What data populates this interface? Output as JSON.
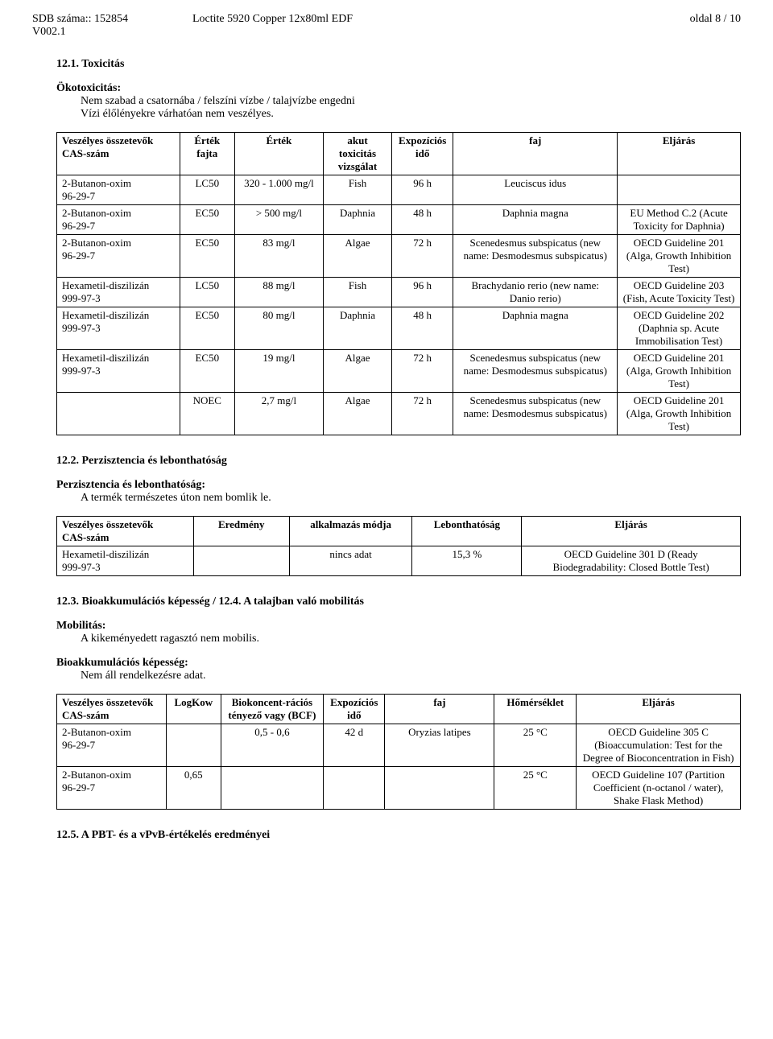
{
  "header": {
    "sdb_label": "SDB száma:: 152854",
    "version_label": "V002.1",
    "product_name": "Loctite 5920 Copper 12x80ml EDF",
    "page_label": "oldal 8 / 10"
  },
  "sec12_1": {
    "title": "12.1. Toxicitás",
    "eco_head": "Ökotoxicitás:",
    "eco_line1": "Nem szabad a csatornába / felszíni vízbe / talajvízbe engedni",
    "eco_line2": "Vízi élőlényekre várhatóan nem veszélyes.",
    "table": {
      "headers": [
        "Veszélyes összetevők\nCAS-szám",
        "Érték fajta",
        "Érték",
        "akut toxicitás vizsgálat",
        "Expozíciós idő",
        "faj",
        "Eljárás"
      ],
      "rows": [
        [
          "2-Butanon-oxim\n96-29-7",
          "LC50",
          "320 - 1.000 mg/l",
          "Fish",
          "96 h",
          "Leuciscus idus",
          ""
        ],
        [
          "2-Butanon-oxim\n96-29-7",
          "EC50",
          "> 500 mg/l",
          "Daphnia",
          "48 h",
          "Daphnia magna",
          "EU Method C.2 (Acute Toxicity for Daphnia)"
        ],
        [
          "2-Butanon-oxim\n96-29-7",
          "EC50",
          "83 mg/l",
          "Algae",
          "72 h",
          "Scenedesmus subspicatus (new name: Desmodesmus subspicatus)",
          "OECD Guideline 201 (Alga, Growth Inhibition Test)"
        ],
        [
          "Hexametil-diszilizán\n999-97-3",
          "LC50",
          "88 mg/l",
          "Fish",
          "96 h",
          "Brachydanio rerio (new name: Danio rerio)",
          "OECD Guideline 203 (Fish, Acute Toxicity Test)"
        ],
        [
          "Hexametil-diszilizán\n999-97-3",
          "EC50",
          "80 mg/l",
          "Daphnia",
          "48 h",
          "Daphnia magna",
          "OECD Guideline 202 (Daphnia sp. Acute Immobilisation Test)"
        ],
        [
          "Hexametil-diszilizán\n999-97-3",
          "EC50",
          "19 mg/l",
          "Algae",
          "72 h",
          "Scenedesmus subspicatus (new name: Desmodesmus subspicatus)",
          "OECD Guideline 201 (Alga, Growth Inhibition Test)"
        ],
        [
          "",
          "NOEC",
          "2,7 mg/l",
          "Algae",
          "72 h",
          "Scenedesmus subspicatus (new name: Desmodesmus subspicatus)",
          "OECD Guideline 201 (Alga, Growth Inhibition Test)"
        ]
      ],
      "col_widths": [
        "18%",
        "8%",
        "13%",
        "10%",
        "9%",
        "24%",
        "18%"
      ]
    }
  },
  "sec12_2": {
    "title": "12.2. Perzisztencia és lebonthatóság",
    "sub_head": "Perzisztencia és lebonthatóság:",
    "sub_text": "A termék természetes úton nem bomlik le.",
    "table": {
      "headers": [
        "Veszélyes összetevők\nCAS-szám",
        "Eredmény",
        "alkalmazás módja",
        "Lebonthatóság",
        "Eljárás"
      ],
      "rows": [
        [
          "Hexametil-diszilizán\n999-97-3",
          "",
          "nincs adat",
          "15,3 %",
          "OECD Guideline 301 D (Ready Biodegradability: Closed Bottle Test)"
        ]
      ],
      "col_widths": [
        "20%",
        "14%",
        "18%",
        "16%",
        "32%"
      ]
    }
  },
  "sec12_3": {
    "title": "12.3. Bioakkumulációs képesség / 12.4. A talajban való mobilitás",
    "mob_head": "Mobilitás:",
    "mob_text": "A kikeményedett ragasztó nem mobilis.",
    "bio_head": "Bioakkumulációs képesség:",
    "bio_text": "Nem áll rendelkezésre adat.",
    "table": {
      "headers": [
        "Veszélyes összetevők\nCAS-szám",
        "LogKow",
        "Biokoncent-rációs tényező vagy (BCF)",
        "Expozíciós idő",
        "faj",
        "Hőmérséklet",
        "Eljárás"
      ],
      "rows": [
        [
          "2-Butanon-oxim\n96-29-7",
          "",
          "0,5 - 0,6",
          "42 d",
          "Oryzias latipes",
          "25 °C",
          "OECD Guideline 305 C (Bioaccumulation: Test for the Degree of Bioconcentration in Fish)"
        ],
        [
          "2-Butanon-oxim\n96-29-7",
          "0,65",
          "",
          "",
          "",
          "25 °C",
          "OECD Guideline 107 (Partition Coefficient (n-octanol / water), Shake Flask Method)"
        ]
      ],
      "col_widths": [
        "16%",
        "8%",
        "15%",
        "9%",
        "16%",
        "12%",
        "24%"
      ]
    }
  },
  "sec12_5": {
    "title": "12.5. A PBT- és a vPvB-értékelés eredményei"
  }
}
